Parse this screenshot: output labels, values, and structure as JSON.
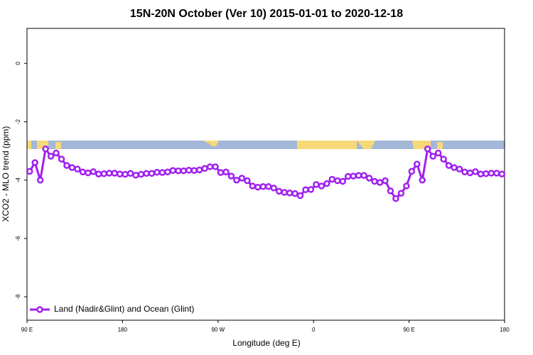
{
  "chart_data": {
    "type": "line",
    "title": "15N-20N October (Ver 10)   2015-01-01 to 2020-12-18",
    "xlabel": "Longitude (deg E)",
    "ylabel": "XCO2 - MLO trend (ppm)",
    "xlim": [
      90,
      540
    ],
    "xticks": [
      {
        "value": 90,
        "label": "90 E"
      },
      180,
      {
        "value": 270,
        "label": "90 W"
      },
      {
        "value": 360,
        "label": "0"
      },
      {
        "value": 450,
        "label": "90 E"
      },
      {
        "value": 540,
        "label": "180"
      }
    ],
    "ylim": [
      -8.8,
      1.2
    ],
    "yticks": [
      0,
      -2,
      -4,
      -6,
      -8
    ],
    "legend": "bottom-left",
    "x": [
      92.5,
      97.5,
      102.5,
      107.5,
      112.5,
      117.5,
      122.5,
      127.5,
      132.5,
      137.5,
      142.5,
      147.5,
      152.5,
      157.5,
      162.5,
      167.5,
      172.5,
      177.5,
      182.5,
      187.5,
      192.5,
      197.5,
      202.5,
      207.5,
      212.5,
      217.5,
      222.5,
      227.5,
      232.5,
      237.5,
      242.5,
      247.5,
      252.5,
      257.5,
      262.5,
      267.5,
      272.5,
      277.5,
      282.5,
      287.5,
      292.5,
      297.5,
      302.5,
      307.5,
      312.5,
      317.5,
      322.5,
      327.5,
      332.5,
      337.5,
      342.5,
      347.5,
      352.5,
      357.5,
      362.5,
      367.5,
      372.5,
      377.5,
      382.5,
      387.5,
      392.5,
      397.5,
      402.5,
      407.5,
      412.5,
      417.5,
      422.5,
      427.5,
      432.5,
      437.5,
      442.5,
      447.5,
      452.5,
      457.5,
      462.5,
      467.5,
      472.5,
      477.5,
      482.5,
      487.5,
      492.5,
      497.5,
      502.5,
      507.5,
      512.5,
      517.5,
      522.5,
      527.5,
      532.5,
      537.5
    ],
    "series": [
      {
        "name": "Land (Nadir&Glint) and Ocean (Glint)",
        "color": "#a020f0",
        "values": [
          -3.7,
          -3.4,
          -4.0,
          -2.93,
          -3.18,
          -3.07,
          -3.28,
          -3.5,
          -3.57,
          -3.62,
          -3.72,
          -3.75,
          -3.71,
          -3.79,
          -3.78,
          -3.76,
          -3.76,
          -3.79,
          -3.8,
          -3.77,
          -3.83,
          -3.8,
          -3.77,
          -3.77,
          -3.73,
          -3.74,
          -3.72,
          -3.67,
          -3.68,
          -3.68,
          -3.66,
          -3.67,
          -3.65,
          -3.6,
          -3.54,
          -3.54,
          -3.74,
          -3.72,
          -3.86,
          -4.0,
          -3.93,
          -4.02,
          -4.2,
          -4.24,
          -4.22,
          -4.22,
          -4.27,
          -4.38,
          -4.42,
          -4.44,
          -4.46,
          -4.53,
          -4.33,
          -4.32,
          -4.15,
          -4.2,
          -4.12,
          -3.97,
          -4.02,
          -4.04,
          -3.87,
          -3.86,
          -3.84,
          -3.84,
          -3.93,
          -4.04,
          -4.08,
          -4.02,
          -4.37,
          -4.63,
          -4.45,
          -4.2,
          -3.7,
          -3.45,
          -4.0,
          -2.93,
          -3.18,
          -3.07,
          -3.28,
          -3.5,
          -3.57,
          -3.62,
          -3.72,
          -3.75,
          -3.71,
          -3.79,
          -3.78,
          -3.76,
          -3.76,
          -3.79
        ]
      }
    ]
  }
}
